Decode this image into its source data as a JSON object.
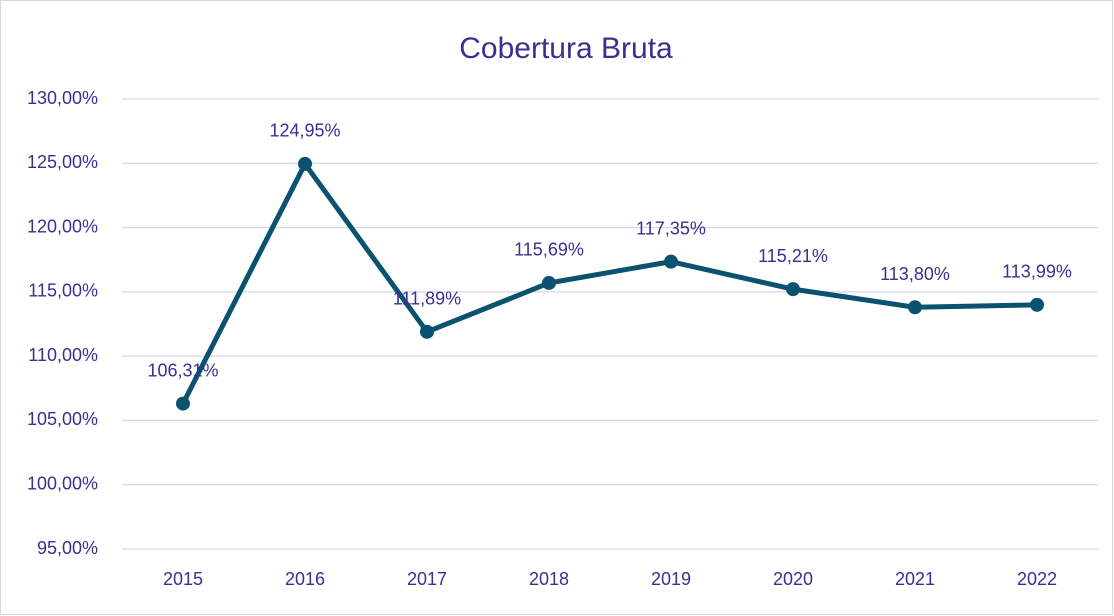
{
  "chart_data": {
    "type": "line",
    "title": "Cobertura Bruta",
    "categories": [
      "2015",
      "2016",
      "2017",
      "2018",
      "2019",
      "2020",
      "2021",
      "2022"
    ],
    "series": [
      {
        "name": "Cobertura Bruta",
        "color": "#0b5270",
        "values": [
          106.31,
          124.95,
          111.89,
          115.69,
          117.35,
          115.21,
          113.8,
          113.99
        ],
        "value_labels": [
          "106,31%",
          "124,95%",
          "111,89%",
          "115,69%",
          "117,35%",
          "115,21%",
          "113,80%",
          "113,99%"
        ]
      }
    ],
    "ylim": [
      95,
      130
    ],
    "yticks": [
      {
        "value": 95,
        "label": "95,00%"
      },
      {
        "value": 100,
        "label": "100,00%"
      },
      {
        "value": 105,
        "label": "105,00%"
      },
      {
        "value": 110,
        "label": "110,00%"
      },
      {
        "value": 115,
        "label": "115,00%"
      },
      {
        "value": 120,
        "label": "120,00%"
      },
      {
        "value": 125,
        "label": "125,00%"
      },
      {
        "value": 130,
        "label": "130,00%"
      }
    ],
    "grid": true
  }
}
